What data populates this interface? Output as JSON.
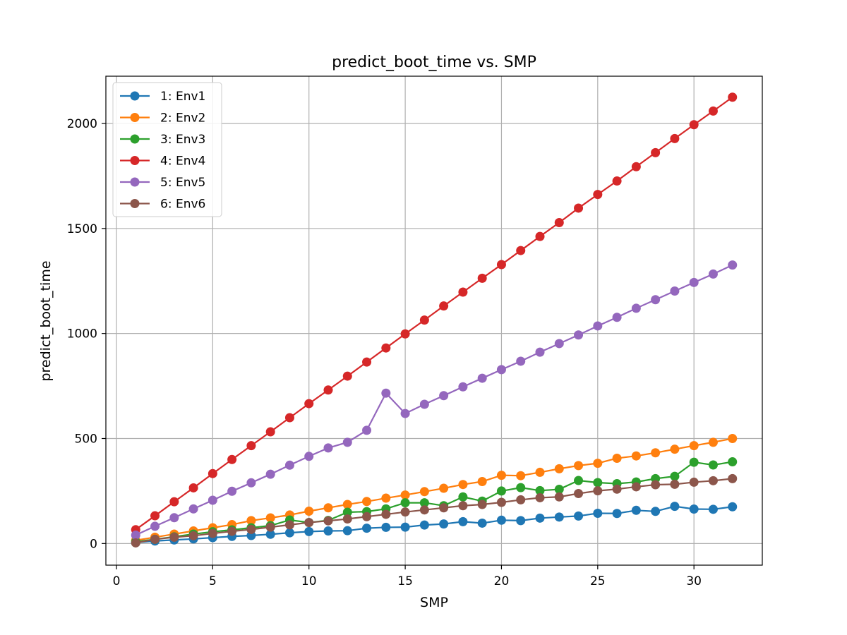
{
  "chart_data": {
    "type": "line",
    "title": "predict_boot_time vs. SMP",
    "xlabel": "SMP",
    "ylabel": "predict_boot_time",
    "xlim": [
      -0.55,
      33.55
    ],
    "ylim": [
      -103,
      2225
    ],
    "xticks": [
      0,
      5,
      10,
      15,
      20,
      25,
      30
    ],
    "yticks": [
      0,
      500,
      1000,
      1500,
      2000
    ],
    "grid": true,
    "legend_position": "top-left",
    "x": [
      1,
      2,
      3,
      4,
      5,
      6,
      7,
      8,
      9,
      10,
      11,
      12,
      13,
      14,
      15,
      16,
      17,
      18,
      19,
      20,
      21,
      22,
      23,
      24,
      25,
      26,
      27,
      28,
      29,
      30,
      31,
      32
    ],
    "series": [
      {
        "name": "1: Env1",
        "color": "#1f77b4",
        "values": [
          5,
          12,
          17,
          22,
          28,
          34,
          38,
          44,
          51,
          57,
          60,
          61,
          73,
          77,
          78,
          88,
          93,
          104,
          97,
          111,
          109,
          121,
          126,
          131,
          144,
          143,
          158,
          153,
          177,
          164,
          163,
          175
        ]
      },
      {
        "name": "2: Env2",
        "color": "#ff7f0e",
        "values": [
          15,
          30,
          45,
          60,
          75,
          90,
          109,
          122,
          136,
          154,
          170,
          186,
          200,
          216,
          231,
          247,
          263,
          281,
          295,
          325,
          323,
          339,
          356,
          371,
          382,
          406,
          417,
          432,
          449,
          466,
          482,
          500
        ]
      },
      {
        "name": "3: Env3",
        "color": "#2ca02c",
        "values": [
          8,
          20,
          32,
          45,
          56,
          65,
          75,
          85,
          112,
          100,
          110,
          149,
          152,
          165,
          194,
          194,
          180,
          222,
          202,
          250,
          266,
          252,
          258,
          300,
          290,
          285,
          293,
          309,
          320,
          387,
          374,
          389
        ]
      },
      {
        "name": "4: Env4",
        "color": "#d62728",
        "values": [
          66,
          132,
          199,
          265,
          333,
          400,
          466,
          532,
          599,
          666,
          731,
          797,
          864,
          931,
          998,
          1064,
          1131,
          1197,
          1263,
          1328,
          1395,
          1462,
          1528,
          1597,
          1662,
          1726,
          1794,
          1861,
          1928,
          1994,
          2059,
          2125
        ]
      },
      {
        "name": "5: Env5",
        "color": "#9467bd",
        "values": [
          40,
          82,
          123,
          165,
          206,
          249,
          289,
          330,
          373,
          415,
          455,
          482,
          539,
          716,
          619,
          663,
          704,
          746,
          787,
          828,
          868,
          911,
          952,
          993,
          1036,
          1077,
          1120,
          1161,
          1202,
          1243,
          1283,
          1326
        ]
      },
      {
        "name": "6: Env6",
        "color": "#8c564b",
        "values": [
          3,
          20,
          30,
          37,
          48,
          58,
          67,
          78,
          89,
          100,
          108,
          117,
          128,
          139,
          150,
          160,
          170,
          180,
          186,
          196,
          208,
          218,
          222,
          238,
          251,
          259,
          270,
          280,
          282,
          292,
          299,
          309
        ]
      }
    ]
  }
}
